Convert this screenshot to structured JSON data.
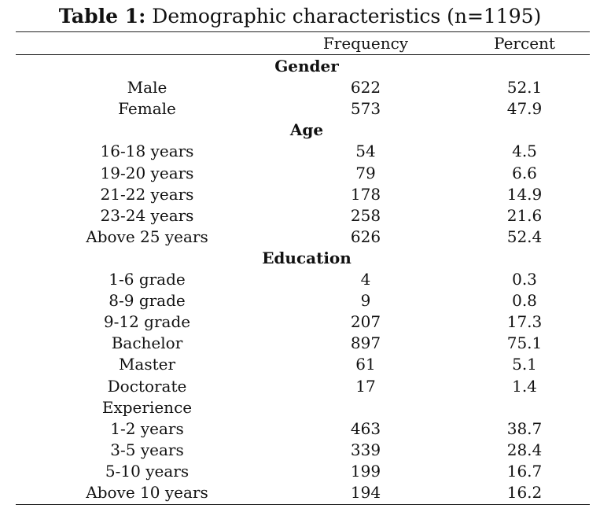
{
  "table": {
    "title_bold": "Table 1:",
    "title_rest": " Demographic characteristics (n=1195)",
    "columns": [
      "",
      "Frequency",
      "Percent"
    ],
    "groups": [
      {
        "name": "Gender",
        "rows": [
          [
            "Male",
            "622",
            "52.1"
          ],
          [
            "Female",
            "573",
            "47.9"
          ]
        ]
      },
      {
        "name": "Age",
        "rows": [
          [
            "16-18 years",
            "54",
            "4.5"
          ],
          [
            "19-20 years",
            "79",
            "6.6"
          ],
          [
            "21-22 years",
            "178",
            "14.9"
          ],
          [
            "23-24 years",
            "258",
            "21.6"
          ],
          [
            "Above 25 years",
            "626",
            "52.4"
          ]
        ]
      },
      {
        "name": "Education",
        "rows": [
          [
            "1-6 grade",
            "4",
            "0.3"
          ],
          [
            "8-9 grade",
            "9",
            "0.8"
          ],
          [
            "9-12 grade",
            "207",
            "17.3"
          ],
          [
            "Bachelor",
            "897",
            "75.1"
          ],
          [
            "Master",
            "61",
            "5.1"
          ],
          [
            "Doctorate",
            "17",
            "1.4"
          ]
        ]
      },
      {
        "name": "Experience",
        "rows": [
          [
            "1-2 years",
            "463",
            "38.7"
          ],
          [
            "3-5 years",
            "339",
            "28.4"
          ],
          [
            "5-10 years",
            "199",
            "16.7"
          ],
          [
            "Above 10 years",
            "194",
            "16.2"
          ]
        ]
      }
    ]
  }
}
